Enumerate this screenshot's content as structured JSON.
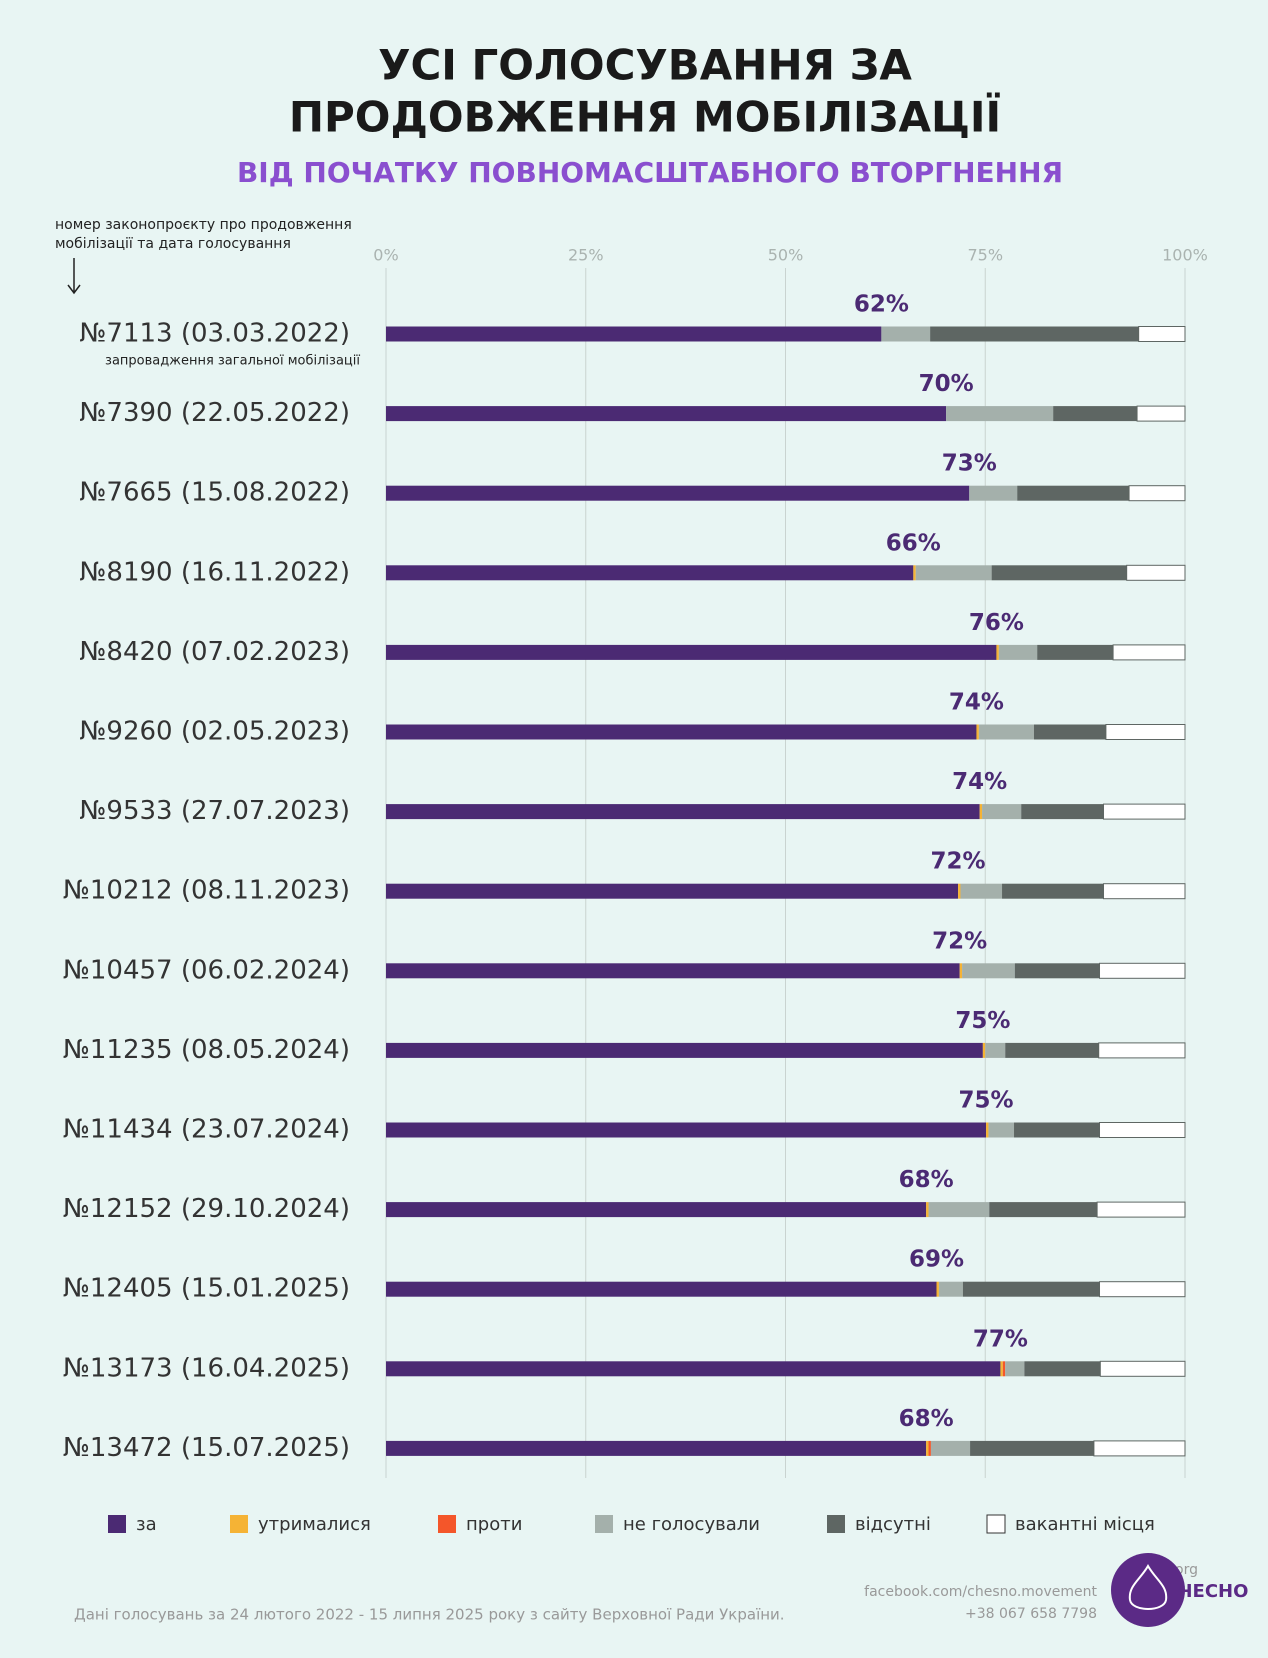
{
  "chart_data": {
    "type": "stacked_bar_horizontal",
    "title": [
      "УСІ ГОЛОСУВАННЯ ЗА",
      "ПРОДОВЖЕННЯ МОБІЛІЗАЦІЇ"
    ],
    "subtitle": "ВІД ПОЧАТКУ ПОВНОМАСШТАБНОГО ВТОРГНЕННЯ",
    "axis_note": [
      "номер законопроєкту про продовження",
      "мобілізації та дата голосування"
    ],
    "annotation": "запровадження загальної мобілізації",
    "categories": [
      "№7113 (03.03.2022)",
      "№7390 (22.05.2022)",
      "№7665 (15.08.2022)",
      "№8190 (16.11.2022)",
      "№8420 (07.02.2023)",
      "№9260 (02.05.2023)",
      "№9533 (27.07.2023)",
      "№10212 (08.11.2023)",
      "№10457 (06.02.2024)",
      "№11235 (08.05.2024)",
      "№11434 (23.07.2024)",
      "№12152 (29.10.2024)",
      "№12405 (15.01.2025)",
      "№13173 (16.04.2025)",
      "№13472 (15.07.2025)"
    ],
    "xlim": [
      0,
      100
    ],
    "xticks": [
      {
        "value": 0,
        "label": "0%"
      },
      {
        "value": 25,
        "label": "25%"
      },
      {
        "value": 50,
        "label": "50%"
      },
      {
        "value": 75,
        "label": "75%"
      },
      {
        "value": 100,
        "label": "100%"
      }
    ],
    "grid": true,
    "series": [
      {
        "name": "за",
        "color": "#4b2a73",
        "values": [
          62.0,
          70.1,
          73.0,
          66.0,
          76.4,
          73.9,
          74.3,
          71.6,
          71.8,
          74.7,
          75.1,
          67.6,
          68.9,
          76.9,
          67.6
        ],
        "value_labels": [
          "62%",
          "70%",
          "73%",
          "66%",
          "76%",
          "74%",
          "74%",
          "72%",
          "72%",
          "75%",
          "75%",
          "68%",
          "69%",
          "77%",
          "68%"
        ]
      },
      {
        "name": "утрималися",
        "color": "#f5b335",
        "values": [
          0,
          0,
          0,
          0.3,
          0.3,
          0.3,
          0.3,
          0.3,
          0.3,
          0.3,
          0.3,
          0.3,
          0.3,
          0.3,
          0.3
        ]
      },
      {
        "name": "проти",
        "color": "#f4562a",
        "values": [
          0,
          0,
          0,
          0,
          0,
          0,
          0,
          0,
          0,
          0,
          0,
          0,
          0,
          0.3,
          0.3
        ]
      },
      {
        "name": "не голосували",
        "color": "#a4b0ab",
        "values": [
          6.1,
          13.4,
          6.0,
          9.5,
          4.8,
          6.9,
          4.9,
          5.2,
          6.6,
          2.5,
          3.2,
          7.6,
          3.0,
          2.4,
          4.9
        ]
      },
      {
        "name": "відсутні",
        "color": "#5e6663",
        "values": [
          26.1,
          10.5,
          14.0,
          16.9,
          9.5,
          9.0,
          10.3,
          12.7,
          10.6,
          11.7,
          10.7,
          13.5,
          17.1,
          9.5,
          15.5
        ]
      },
      {
        "name": "вакантні місця",
        "color": "#ffffff",
        "values": [
          5.8,
          6.0,
          7.0,
          7.3,
          9.0,
          9.9,
          10.2,
          10.2,
          10.7,
          10.8,
          10.7,
          11.0,
          10.7,
          10.6,
          11.4
        ]
      }
    ],
    "source": "Дані голосувань за 24 лютого 2022 - 15 липня 2025 року з сайту Верховної Ради України.",
    "contacts": [
      "chesno.org",
      "facebook.com/chesno.movement",
      "+38 067 658 7798"
    ],
    "logo": "ЧЕСНО"
  }
}
